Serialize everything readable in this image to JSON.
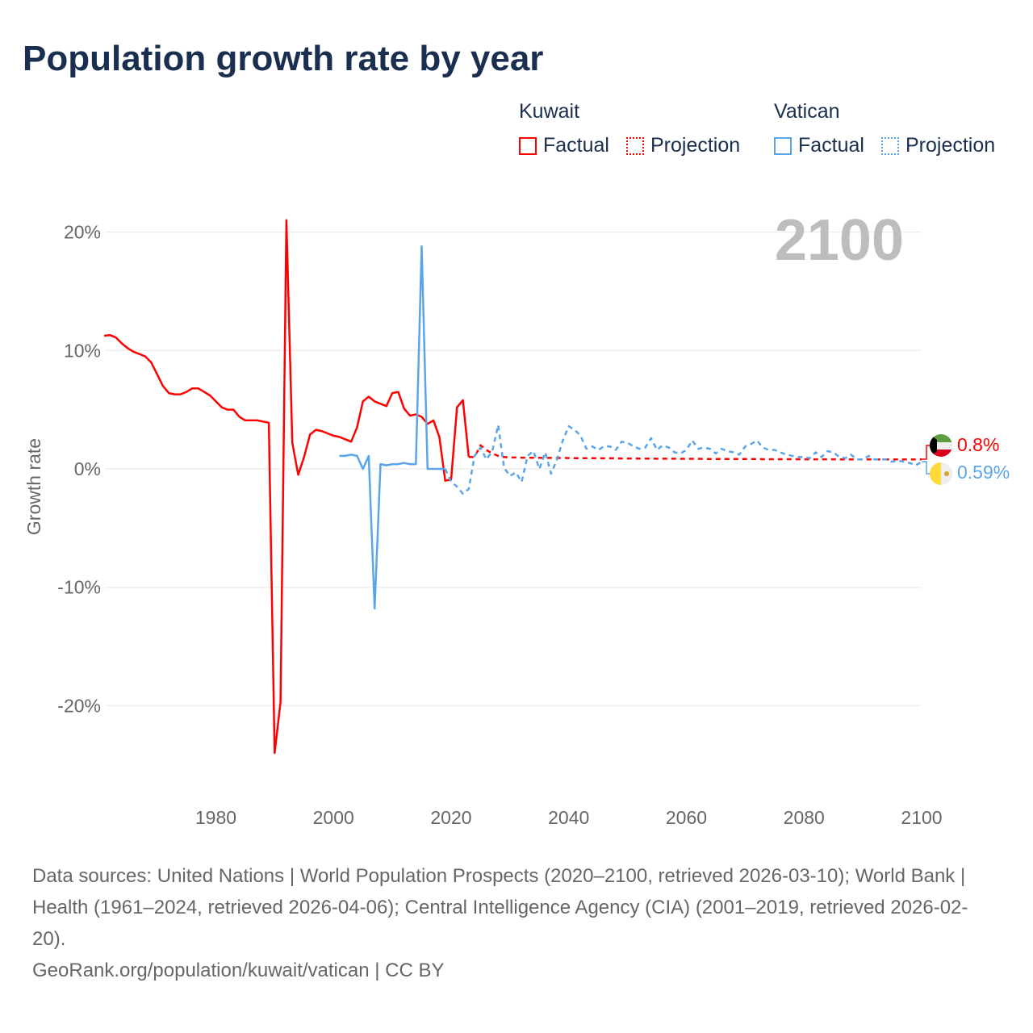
{
  "title": "Population growth rate by year",
  "legend": {
    "groups": [
      {
        "country": "Kuwait",
        "color": "#ff0000",
        "items": [
          "Factual",
          "Projection"
        ]
      },
      {
        "country": "Vatican",
        "color": "#5aa5ea",
        "items": [
          "Factual",
          "Projection"
        ]
      }
    ]
  },
  "current_year_label": "2100",
  "end_labels": [
    {
      "country": "Kuwait",
      "value": "0.8%",
      "color": "#ff0000",
      "flag": "kuwait-flag"
    },
    {
      "country": "Vatican",
      "value": "0.59%",
      "color": "#5aa5ea",
      "flag": "vatican-flag"
    }
  ],
  "footer": {
    "sources": "Data sources: United Nations | World Population Prospects (2020–2100, retrieved 2026-03-10); World Bank | Health (1961–2024, retrieved 2026-04-06); Central Intelligence Agency (CIA) (2001–2019, retrieved 2026-02-20).",
    "credit": "GeoRank.org/population/kuwait/vatican | CC BY"
  },
  "chart_data": {
    "type": "line",
    "title": "Population growth rate by year",
    "xlabel": "",
    "ylabel": "Growth rate",
    "xlim": [
      1961,
      2100
    ],
    "ylim": [
      -26,
      22
    ],
    "x_ticks": [
      1980,
      2000,
      2020,
      2040,
      2060,
      2080,
      2100
    ],
    "y_ticks": [
      {
        "value": 20,
        "label": "20%"
      },
      {
        "value": 10,
        "label": "10%"
      },
      {
        "value": 0,
        "label": "0%"
      },
      {
        "value": -10,
        "label": "-10%"
      },
      {
        "value": -20,
        "label": "-20%"
      }
    ],
    "grid": true,
    "legend_position": "top-right",
    "series": [
      {
        "name": "Kuwait Factual",
        "color": "#ff0000",
        "dashed": false,
        "start_year": 1961,
        "values": [
          11.25,
          11.3,
          11.1,
          10.6,
          10.2,
          9.9,
          9.7,
          9.5,
          9.0,
          8.0,
          7.0,
          6.4,
          6.3,
          6.3,
          6.5,
          6.8,
          6.8,
          6.5,
          6.2,
          5.7,
          5.2,
          5.0,
          5.0,
          4.4,
          4.1,
          4.1,
          4.1,
          4.0,
          3.9,
          -24.0,
          -19.7,
          21.0,
          2.2,
          -0.5,
          1.0,
          2.9,
          3.3,
          3.2,
          3.0,
          2.8,
          2.7,
          2.5,
          2.3,
          3.5,
          5.7,
          6.1,
          5.7,
          5.5,
          5.3,
          6.4,
          6.5,
          5.1,
          4.5,
          4.6,
          4.4,
          3.8,
          4.1,
          2.7,
          -1.0,
          -0.9,
          5.2,
          5.8,
          1.0
        ]
      },
      {
        "name": "Kuwait Projection",
        "color": "#ff0000",
        "dashed": true,
        "start_year": 2023,
        "values": [
          1.0,
          1.0,
          2.0,
          1.6,
          1.3,
          1.1,
          1.0,
          0.97,
          0.96,
          0.95,
          0.95,
          0.94,
          0.94,
          0.93,
          0.93,
          0.92,
          0.92,
          0.92,
          0.91,
          0.91,
          0.9,
          0.9,
          0.9,
          0.89,
          0.89,
          0.89,
          0.88,
          0.88,
          0.88,
          0.87,
          0.87,
          0.87,
          0.86,
          0.86,
          0.86,
          0.86,
          0.85,
          0.85,
          0.85,
          0.85,
          0.84,
          0.84,
          0.84,
          0.84,
          0.84,
          0.83,
          0.83,
          0.83,
          0.83,
          0.83,
          0.82,
          0.82,
          0.82,
          0.82,
          0.82,
          0.82,
          0.81,
          0.81,
          0.81,
          0.81,
          0.81,
          0.81,
          0.81,
          0.8,
          0.8,
          0.8,
          0.8,
          0.8,
          0.8,
          0.8,
          0.8,
          0.8,
          0.8,
          0.8,
          0.8,
          0.8,
          0.8,
          0.8
        ]
      },
      {
        "name": "Vatican Factual",
        "color": "#5aa5ea",
        "dashed": false,
        "start_year": 2001,
        "values": [
          1.1,
          1.1,
          1.2,
          1.1,
          0.0,
          1.1,
          -11.8,
          0.4,
          0.3,
          0.4,
          0.4,
          0.5,
          0.4,
          0.4,
          18.8,
          0.0,
          0.0,
          0.0,
          0.0
        ]
      },
      {
        "name": "Vatican Projection",
        "color": "#5aa5ea",
        "dashed": true,
        "start_year": 2019,
        "values": [
          0.0,
          -1.1,
          -1.5,
          -2.1,
          -1.7,
          1.1,
          1.8,
          0.8,
          1.5,
          3.7,
          0.1,
          -0.6,
          -0.3,
          -1.1,
          1.1,
          1.5,
          0.0,
          1.4,
          -0.4,
          0.8,
          2.4,
          3.6,
          3.3,
          2.8,
          1.7,
          1.9,
          1.6,
          1.9,
          1.9,
          1.6,
          2.3,
          2.2,
          1.9,
          1.7,
          1.8,
          2.6,
          1.6,
          2.0,
          1.8,
          1.4,
          1.3,
          1.6,
          2.4,
          1.7,
          1.8,
          1.7,
          1.3,
          1.7,
          1.5,
          1.4,
          1.2,
          1.9,
          2.1,
          2.4,
          1.8,
          1.6,
          1.6,
          1.4,
          1.2,
          1.1,
          1.0,
          1.0,
          0.9,
          1.4,
          1.0,
          1.5,
          1.4,
          1.0,
          0.9,
          1.2,
          0.8,
          0.8,
          1.1,
          0.8,
          0.8,
          0.8,
          0.6,
          0.7,
          0.6,
          0.5,
          0.3,
          0.59
        ]
      }
    ]
  }
}
